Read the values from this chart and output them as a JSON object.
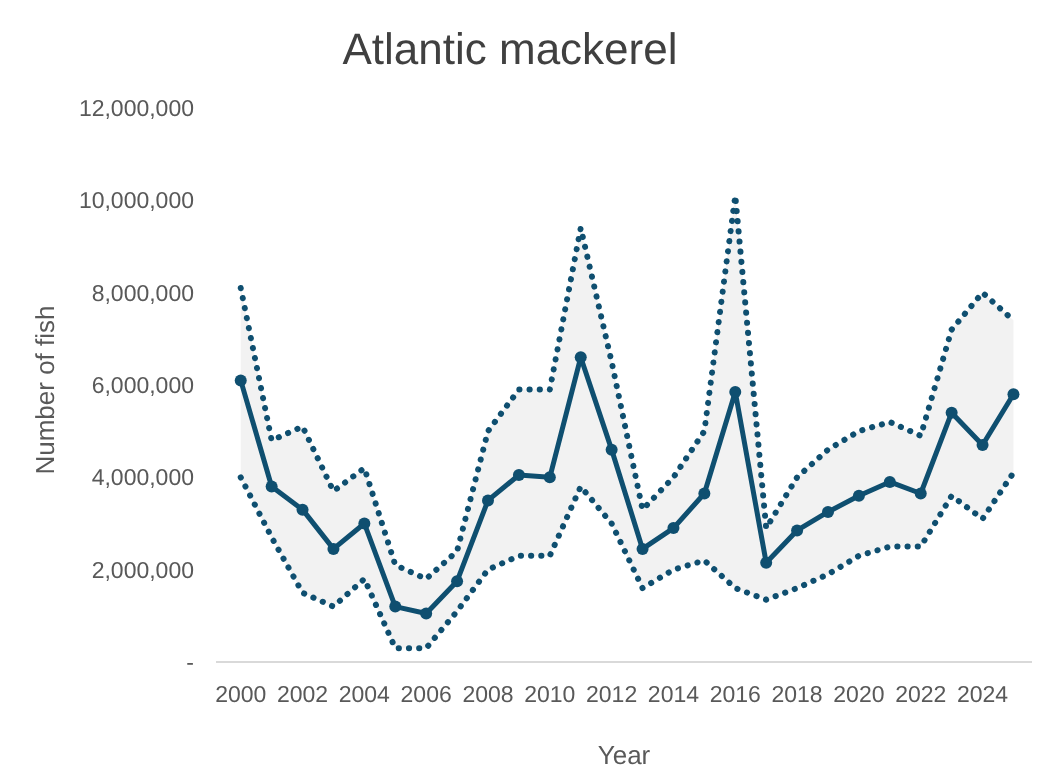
{
  "chart_data": {
    "type": "line",
    "title": "Atlantic mackerel",
    "xlabel": "Year",
    "ylabel": "Number of fish",
    "x": [
      2000,
      2001,
      2002,
      2003,
      2004,
      2005,
      2006,
      2007,
      2008,
      2009,
      2010,
      2011,
      2012,
      2013,
      2014,
      2015,
      2016,
      2017,
      2018,
      2019,
      2020,
      2021,
      2022,
      2023,
      2024,
      2025
    ],
    "series": [
      {
        "color": "#0f4f70",
        "marker": "circle",
        "values": [
          6100000,
          3800000,
          3300000,
          2450000,
          3000000,
          1200000,
          1050000,
          1750000,
          3500000,
          4050000,
          4000000,
          6600000,
          4600000,
          2450000,
          2900000,
          3650000,
          5850000,
          2150000,
          2850000,
          3250000,
          3600000,
          3900000,
          3650000,
          5400000,
          4700000,
          5800000
        ],
        "upper": [
          8100000,
          4800000,
          5100000,
          3700000,
          4200000,
          2100000,
          1800000,
          2400000,
          5000000,
          5900000,
          5900000,
          9400000,
          6500000,
          3300000,
          4000000,
          5000000,
          10100000,
          2900000,
          4000000,
          4600000,
          5000000,
          5200000,
          4900000,
          7200000,
          8000000,
          7400000
        ],
        "lower": [
          4000000,
          2700000,
          1500000,
          1200000,
          1800000,
          300000,
          300000,
          1100000,
          2000000,
          2300000,
          2300000,
          3800000,
          3000000,
          1600000,
          2000000,
          2200000,
          1600000,
          1350000,
          1600000,
          1900000,
          2300000,
          2500000,
          2500000,
          3600000,
          3100000,
          4100000
        ]
      },
      {
        "color": "#0f4f70",
        "marker": "none",
        "line_style": "dotted",
        "values": [
          8100000,
          4800000,
          5100000,
          3700000,
          4200000,
          2100000,
          1800000,
          2400000,
          5000000,
          5900000,
          5900000,
          9400000,
          6500000,
          3300000,
          4000000,
          5000000,
          10100000,
          2900000,
          4000000,
          4600000,
          5000000,
          5200000,
          4900000,
          7200000,
          8000000,
          7400000
        ]
      },
      {
        "color": "#0f4f70",
        "marker": "none",
        "line_style": "dotted",
        "values": [
          4000000,
          2700000,
          1500000,
          1200000,
          1800000,
          300000,
          300000,
          1100000,
          2000000,
          2300000,
          2300000,
          3800000,
          3000000,
          1600000,
          2000000,
          2200000,
          1600000,
          1350000,
          1600000,
          1900000,
          2300000,
          2500000,
          2500000,
          3600000,
          3100000,
          4100000
        ]
      }
    ],
    "xlim": [
      1999.2,
      2025.6
    ],
    "xticks": [
      2000,
      2002,
      2004,
      2006,
      2008,
      2010,
      2012,
      2014,
      2016,
      2018,
      2020,
      2022,
      2024
    ],
    "ylim": [
      0,
      12000000
    ],
    "yticks": [
      {
        "value": 0,
        "label": "-"
      },
      {
        "value": 2000000,
        "label": "2,000,000"
      },
      {
        "value": 4000000,
        "label": "4,000,000"
      },
      {
        "value": 6000000,
        "label": "6,000,000"
      },
      {
        "value": 8000000,
        "label": "8,000,000"
      },
      {
        "value": 10000000,
        "label": "10,000,000"
      },
      {
        "value": 12000000,
        "label": "12,000,000"
      }
    ],
    "grid": false,
    "line_style": "solid"
  }
}
